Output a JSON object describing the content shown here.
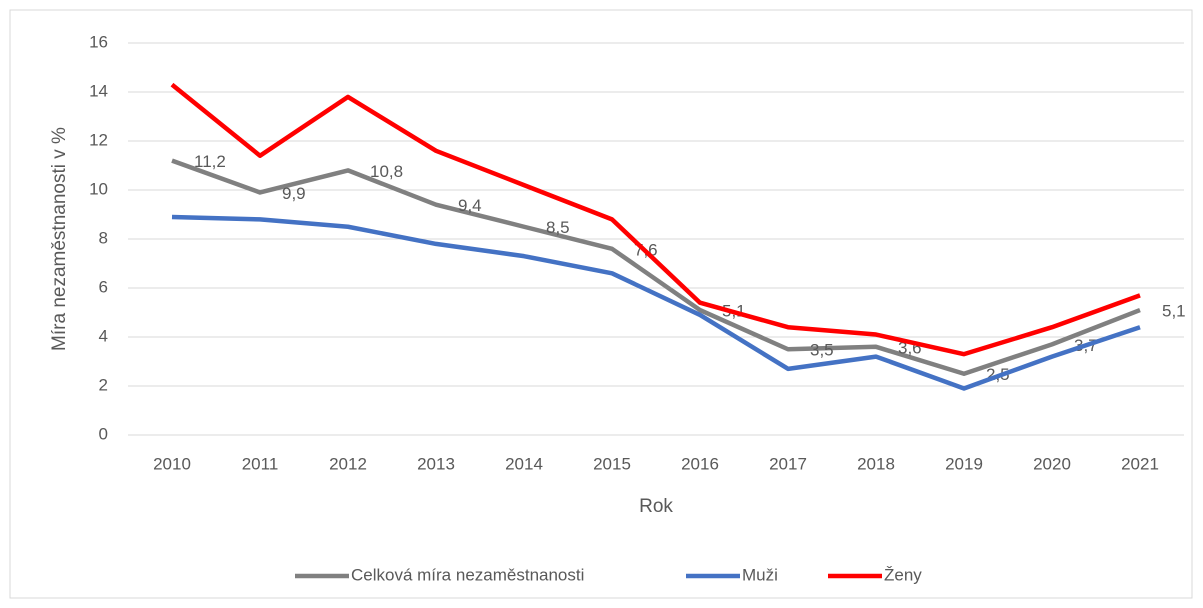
{
  "chart_data": {
    "type": "line",
    "xlabel": "Rok",
    "ylabel": "Míra nezaměstnanosti v %",
    "categories": [
      "2010",
      "2011",
      "2012",
      "2013",
      "2014",
      "2015",
      "2016",
      "2017",
      "2018",
      "2019",
      "2020",
      "2021"
    ],
    "series": [
      {
        "name": "Celková míra nezaměstnanosti",
        "color": "#808080",
        "values": [
          11.2,
          9.9,
          10.8,
          9.4,
          8.5,
          7.6,
          5.1,
          3.5,
          3.6,
          2.5,
          3.7,
          5.1
        ],
        "value_labels": [
          "11,2",
          "9,9",
          "10,8",
          "9,4",
          "8,5",
          "7,6",
          "5,1",
          "3,5",
          "3,6",
          "2,5",
          "3,7",
          "5,1"
        ]
      },
      {
        "name": "Muži",
        "color": "#4472c4",
        "values": [
          8.9,
          8.8,
          8.5,
          7.8,
          7.3,
          6.6,
          4.9,
          2.7,
          3.2,
          1.9,
          3.2,
          4.4
        ]
      },
      {
        "name": "Ženy",
        "color": "#ff0000",
        "values": [
          14.3,
          11.4,
          13.8,
          11.6,
          10.2,
          8.8,
          5.4,
          4.4,
          4.1,
          3.3,
          4.4,
          5.7
        ]
      }
    ],
    "ylim": [
      0,
      16
    ],
    "yticks": [
      0,
      2,
      4,
      6,
      8,
      10,
      12,
      14,
      16
    ],
    "grid": true,
    "legend": "bottom"
  }
}
